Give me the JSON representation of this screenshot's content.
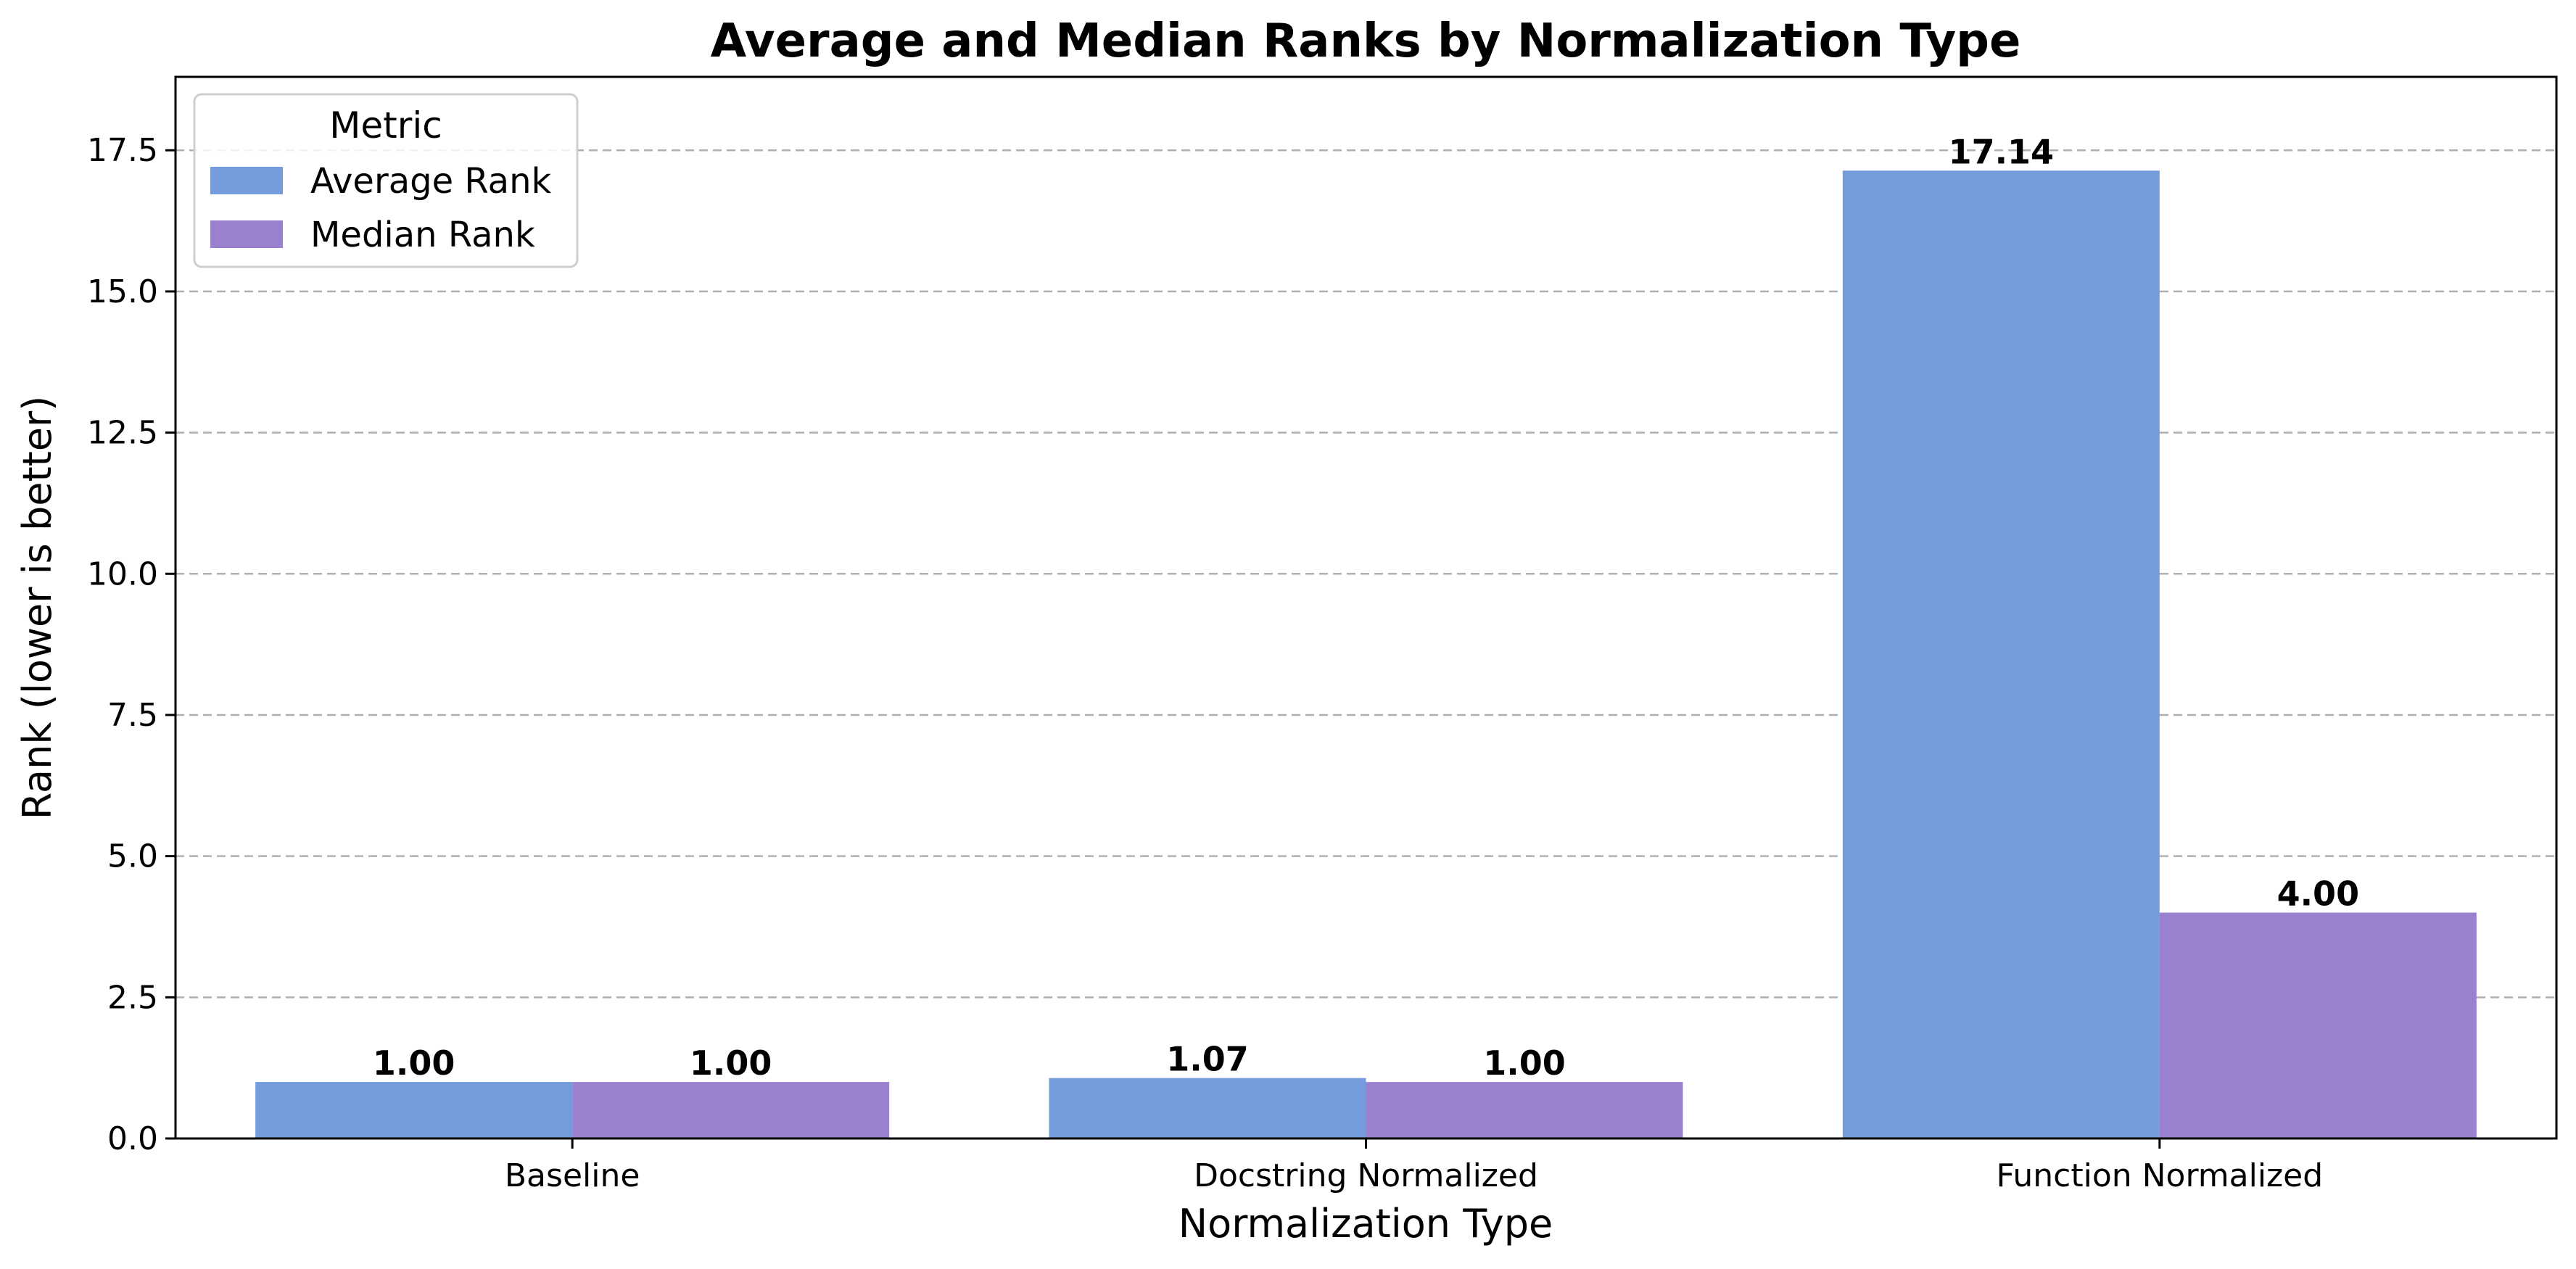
{
  "chart_data": {
    "type": "bar",
    "title": "Average and Median Ranks by Normalization Type",
    "xlabel": "Normalization Type",
    "ylabel": "Rank (lower is better)",
    "categories": [
      "Baseline",
      "Docstring Normalized",
      "Function Normalized"
    ],
    "series": [
      {
        "name": "Average Rank",
        "values": [
          1.0,
          1.07,
          17.14
        ],
        "labels": [
          "1.00",
          "1.07",
          "17.14"
        ],
        "color": "#749bdc"
      },
      {
        "name": "Median Rank",
        "values": [
          1.0,
          1.0,
          4.0
        ],
        "labels": [
          "1.00",
          "1.00",
          "4.00"
        ],
        "color": "#9a80cf"
      }
    ],
    "ylim": [
      0,
      18.8
    ],
    "yticks": [
      0,
      2.5,
      5,
      7.5,
      10,
      12.5,
      15,
      17.5
    ],
    "ytick_labels": [
      "0.0",
      "2.5",
      "5.0",
      "7.5",
      "10.0",
      "12.5",
      "15.0",
      "17.5"
    ],
    "grid": "y-dashed",
    "legend": {
      "title": "Metric",
      "position": "top-left"
    }
  }
}
